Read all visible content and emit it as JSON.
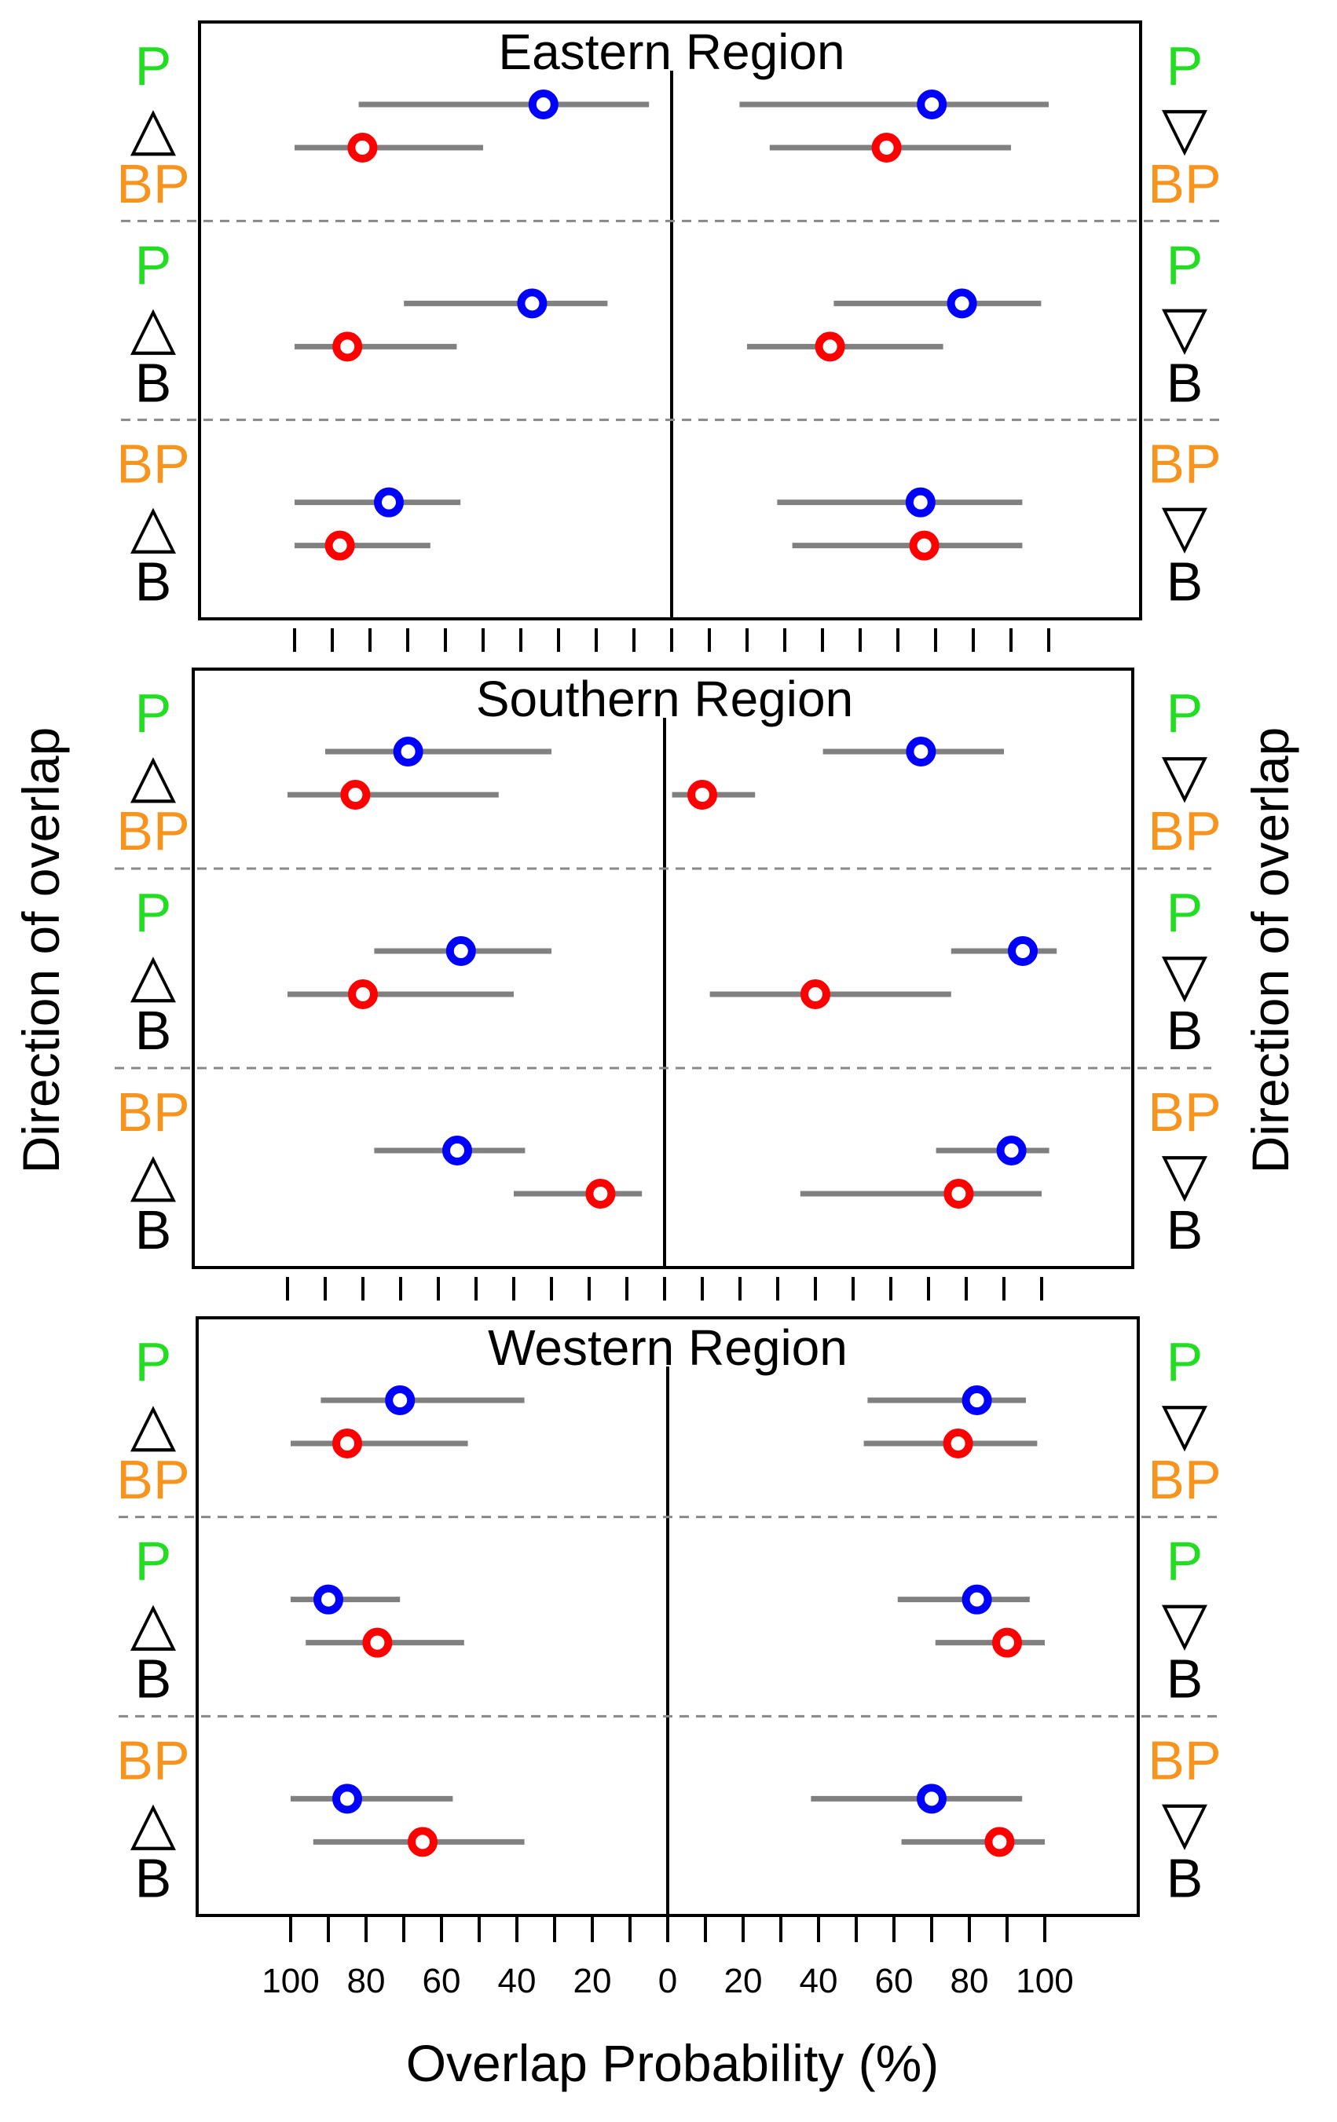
{
  "colors": {
    "P": "#22dd22",
    "BP": "#f7941d",
    "B": "#000000",
    "blue_marker": "#0000ff",
    "red_marker": "#ff0000",
    "range": "#808080"
  },
  "axis": {
    "xlabel": "Overlap Probability (%)",
    "ylabel_left": "Direction of overlap",
    "ylabel_right": "Direction of overlap",
    "left_tick_labels": [
      "100",
      "80",
      "60",
      "40",
      "20",
      "0"
    ],
    "right_tick_labels": [
      "0",
      "20",
      "40",
      "60",
      "80",
      "100"
    ]
  },
  "chart_data": [
    {
      "type": "scatter",
      "title": "Eastern Region",
      "xlim_each_side": [
        0,
        100
      ],
      "rows": [
        {
          "left_labels": [
            "P",
            "△",
            "BP"
          ],
          "right_labels": [
            "P",
            "▽",
            "BP"
          ],
          "blue": {
            "left": {
              "value": 34,
              "low": 6,
              "high": 83
            },
            "right": {
              "value": 69,
              "low": 18,
              "high": 100
            }
          },
          "red": {
            "left": {
              "value": 82,
              "low": 50,
              "high": 100
            },
            "right": {
              "value": 57,
              "low": 26,
              "high": 90
            }
          }
        },
        {
          "left_labels": [
            "P",
            "△",
            "B"
          ],
          "right_labels": [
            "P",
            "▽",
            "B"
          ],
          "blue": {
            "left": {
              "value": 37,
              "low": 17,
              "high": 71
            },
            "right": {
              "value": 77,
              "low": 43,
              "high": 98
            }
          },
          "red": {
            "left": {
              "value": 86,
              "low": 57,
              "high": 100
            },
            "right": {
              "value": 42,
              "low": 20,
              "high": 72
            }
          }
        },
        {
          "left_labels": [
            "BP",
            "△",
            "B"
          ],
          "right_labels": [
            "BP",
            "▽",
            "B"
          ],
          "blue": {
            "left": {
              "value": 75,
              "low": 56,
              "high": 100
            },
            "right": {
              "value": 66,
              "low": 28,
              "high": 93
            }
          },
          "red": {
            "left": {
              "value": 88,
              "low": 64,
              "high": 100
            },
            "right": {
              "value": 67,
              "low": 32,
              "high": 93
            }
          }
        }
      ]
    },
    {
      "type": "scatter",
      "title": "Southern Region",
      "xlim_each_side": [
        0,
        100
      ],
      "rows": [
        {
          "left_labels": [
            "P",
            "△",
            "BP"
          ],
          "right_labels": [
            "P",
            "▽",
            "BP"
          ],
          "blue": {
            "left": {
              "value": 68,
              "low": 30,
              "high": 90
            },
            "right": {
              "value": 68,
              "low": 42,
              "high": 90
            }
          },
          "red": {
            "left": {
              "value": 82,
              "low": 44,
              "high": 100
            },
            "right": {
              "value": 10,
              "low": 2,
              "high": 24
            }
          }
        },
        {
          "left_labels": [
            "P",
            "△",
            "B"
          ],
          "right_labels": [
            "P",
            "▽",
            "B"
          ],
          "blue": {
            "left": {
              "value": 54,
              "low": 30,
              "high": 77
            },
            "right": {
              "value": 95,
              "low": 76,
              "high": 104
            }
          },
          "red": {
            "left": {
              "value": 80,
              "low": 40,
              "high": 100
            },
            "right": {
              "value": 40,
              "low": 12,
              "high": 76
            }
          }
        },
        {
          "left_labels": [
            "BP",
            "△",
            "B"
          ],
          "right_labels": [
            "BP",
            "▽",
            "B"
          ],
          "blue": {
            "left": {
              "value": 55,
              "low": 37,
              "high": 77
            },
            "right": {
              "value": 92,
              "low": 72,
              "high": 102
            }
          },
          "red": {
            "left": {
              "value": 17,
              "low": 6,
              "high": 40
            },
            "right": {
              "value": 78,
              "low": 36,
              "high": 100
            }
          }
        }
      ]
    },
    {
      "type": "scatter",
      "title": "Western Region",
      "xlim_each_side": [
        0,
        100
      ],
      "rows": [
        {
          "left_labels": [
            "P",
            "△",
            "BP"
          ],
          "right_labels": [
            "P",
            "▽",
            "BP"
          ],
          "blue": {
            "left": {
              "value": 71,
              "low": 38,
              "high": 92
            },
            "right": {
              "value": 82,
              "low": 53,
              "high": 95
            }
          },
          "red": {
            "left": {
              "value": 85,
              "low": 53,
              "high": 100
            },
            "right": {
              "value": 77,
              "low": 52,
              "high": 98
            }
          }
        },
        {
          "left_labels": [
            "P",
            "△",
            "B"
          ],
          "right_labels": [
            "P",
            "▽",
            "B"
          ],
          "blue": {
            "left": {
              "value": 90,
              "low": 71,
              "high": 100
            },
            "right": {
              "value": 82,
              "low": 61,
              "high": 96
            }
          },
          "red": {
            "left": {
              "value": 77,
              "low": 54,
              "high": 96
            },
            "right": {
              "value": 90,
              "low": 71,
              "high": 100
            }
          }
        },
        {
          "left_labels": [
            "BP",
            "△",
            "B"
          ],
          "right_labels": [
            "BP",
            "▽",
            "B"
          ],
          "blue": {
            "left": {
              "value": 85,
              "low": 57,
              "high": 100
            },
            "right": {
              "value": 70,
              "low": 38,
              "high": 94
            }
          },
          "red": {
            "left": {
              "value": 65,
              "low": 38,
              "high": 94
            },
            "right": {
              "value": 88,
              "low": 62,
              "high": 100
            }
          }
        }
      ]
    }
  ]
}
